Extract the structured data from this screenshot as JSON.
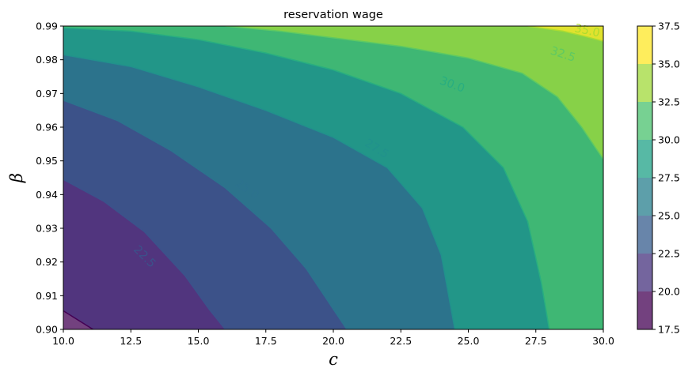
{
  "chart_data": {
    "type": "contour",
    "title": "reservation wage",
    "xlabel": "c",
    "ylabel": "β",
    "xlim": [
      10.0,
      30.0
    ],
    "ylim": [
      0.9,
      0.99
    ],
    "x_ticks": [
      "10.0",
      "12.5",
      "15.0",
      "17.5",
      "20.0",
      "22.5",
      "25.0",
      "27.5",
      "30.0"
    ],
    "y_ticks": [
      "0.90",
      "0.91",
      "0.92",
      "0.93",
      "0.94",
      "0.95",
      "0.96",
      "0.97",
      "0.98",
      "0.99"
    ],
    "levels": [
      17.5,
      20.0,
      22.5,
      25.0,
      27.5,
      30.0,
      32.5,
      35.0,
      37.5
    ],
    "colorbar_ticks": [
      "17.5",
      "20.0",
      "22.5",
      "25.0",
      "27.5",
      "30.0",
      "32.5",
      "35.0",
      "37.5"
    ],
    "band_colors": [
      "#440154",
      "#46327e",
      "#365c8d",
      "#277f8e",
      "#1fa187",
      "#4ac16d",
      "#a0da39",
      "#fde725"
    ],
    "line_colors": [
      "#440154",
      "#3b528b",
      "#2c728e",
      "#21918c",
      "#28ae80",
      "#5ec962",
      "#addc30"
    ],
    "contour_lines": [
      {
        "level": 20.0,
        "label": "",
        "points": [
          [
            10.0,
            0.9055
          ],
          [
            11.1,
            0.9
          ]
        ]
      },
      {
        "level": 22.5,
        "label": "22.5",
        "points": [
          [
            10.0,
            0.9445
          ],
          [
            11.5,
            0.938
          ],
          [
            13.0,
            0.929
          ],
          [
            14.5,
            0.916
          ],
          [
            15.4,
            0.906
          ],
          [
            16.0,
            0.9
          ]
        ]
      },
      {
        "level": 25.0,
        "label": "25.0",
        "points": [
          [
            10.0,
            0.968
          ],
          [
            12.0,
            0.962
          ],
          [
            14.0,
            0.953
          ],
          [
            16.0,
            0.942
          ],
          [
            17.7,
            0.93
          ],
          [
            19.0,
            0.918
          ],
          [
            20.0,
            0.906
          ],
          [
            20.5,
            0.9
          ]
        ]
      },
      {
        "level": 27.5,
        "label": "27.5",
        "points": [
          [
            10.0,
            0.9815
          ],
          [
            12.5,
            0.978
          ],
          [
            15.0,
            0.972
          ],
          [
            17.5,
            0.965
          ],
          [
            20.0,
            0.957
          ],
          [
            22.0,
            0.948
          ],
          [
            23.3,
            0.936
          ],
          [
            24.0,
            0.922
          ],
          [
            24.5,
            0.9
          ]
        ]
      },
      {
        "level": 30.0,
        "label": "30.0",
        "points": [
          [
            10.0,
            0.9895
          ],
          [
            12.5,
            0.9885
          ],
          [
            15.0,
            0.986
          ],
          [
            17.5,
            0.982
          ],
          [
            20.0,
            0.977
          ],
          [
            22.5,
            0.97
          ],
          [
            24.8,
            0.96
          ],
          [
            26.3,
            0.948
          ],
          [
            27.2,
            0.932
          ],
          [
            27.7,
            0.914
          ],
          [
            28.0,
            0.9
          ]
        ]
      },
      {
        "level": 32.5,
        "label": "32.5",
        "points": [
          [
            16.0,
            0.99
          ],
          [
            18.0,
            0.9885
          ],
          [
            20.0,
            0.9865
          ],
          [
            22.5,
            0.984
          ],
          [
            25.0,
            0.9805
          ],
          [
            27.0,
            0.976
          ],
          [
            28.3,
            0.969
          ],
          [
            29.2,
            0.96
          ],
          [
            29.7,
            0.954
          ],
          [
            30.0,
            0.9505
          ]
        ]
      },
      {
        "level": 35.0,
        "label": "35.0",
        "points": [
          [
            27.2,
            0.99
          ],
          [
            28.5,
            0.9885
          ],
          [
            29.3,
            0.987
          ],
          [
            30.0,
            0.9855
          ]
        ]
      }
    ],
    "contour_label_positions": [
      {
        "text": "22.5",
        "x": 13.0,
        "y": 0.9215,
        "angle": 45,
        "level": 22.5
      },
      {
        "text": "25.0",
        "x": 16.8,
        "y": 0.9415,
        "angle": 34,
        "level": 25.0
      },
      {
        "text": "27.5",
        "x": 21.6,
        "y": 0.9535,
        "angle": 32,
        "level": 27.5
      },
      {
        "text": "30.0",
        "x": 24.4,
        "y": 0.9725,
        "angle": 20,
        "level": 30.0
      },
      {
        "text": "32.5",
        "x": 28.5,
        "y": 0.9815,
        "angle": 18,
        "level": 32.5
      },
      {
        "text": "35.0",
        "x": 29.4,
        "y": 0.9885,
        "angle": 12,
        "level": 35.0
      }
    ]
  }
}
